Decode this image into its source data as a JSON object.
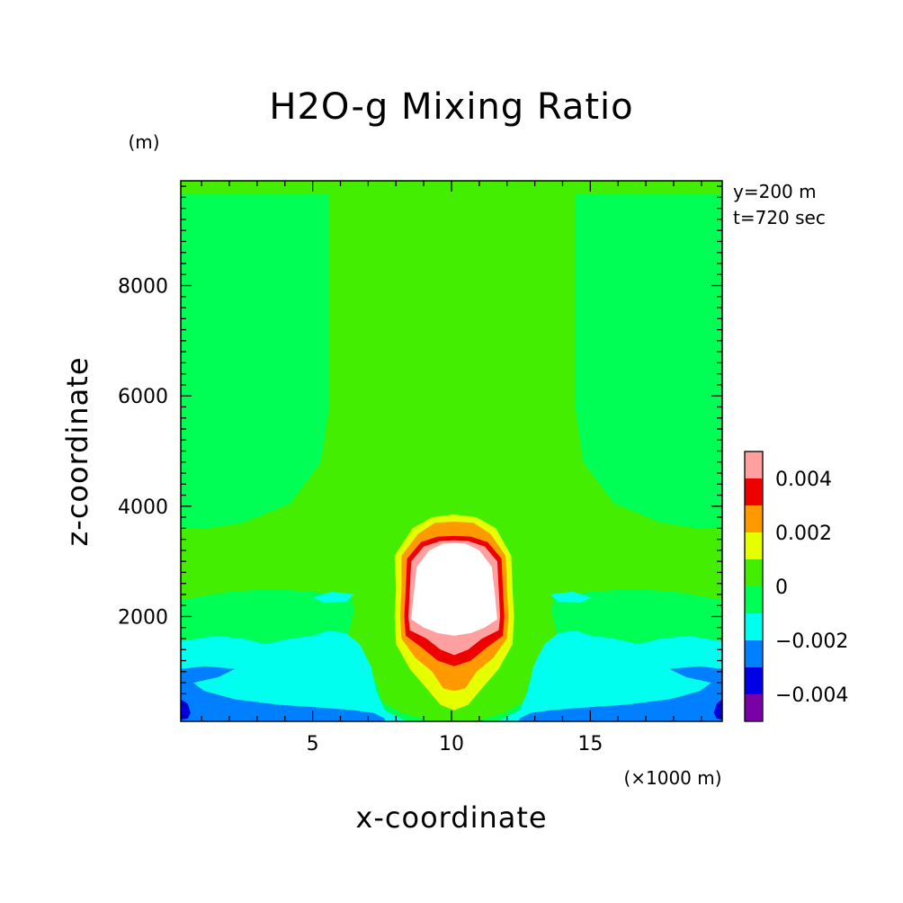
{
  "chart_data": {
    "type": "heatmap",
    "subtype": "filled-contour",
    "title": "H2O-g Mixing Ratio",
    "xlabel": "x-coordinate",
    "ylabel": "z-coordinate",
    "x_unit": "(×1000 m)",
    "y_unit": "(m)",
    "annotations": [
      "y=200 m",
      "t=720 sec"
    ],
    "xlim": [
      0.25,
      19.75
    ],
    "ylim": [
      100,
      9900
    ],
    "xticks": [
      5,
      10,
      15
    ],
    "xtick_labels": [
      "5",
      "10",
      "15"
    ],
    "yticks": [
      2000,
      4000,
      6000,
      8000
    ],
    "ytick_labels": [
      "2000",
      "4000",
      "6000",
      "8000"
    ],
    "colorbar": {
      "placement": "right",
      "levels": [
        -0.005,
        -0.004,
        -0.003,
        -0.002,
        -0.001,
        0,
        0.001,
        0.002,
        0.003,
        0.004,
        0.005
      ],
      "colors": [
        "#7a00a8",
        "#0000e6",
        "#0080ff",
        "#00ffee",
        "#00ff55",
        "#44ee00",
        "#e6ff00",
        "#ff9900",
        "#ee0000",
        "#ffa0a0"
      ],
      "tick_values": [
        -0.004,
        -0.002,
        0,
        0.002,
        0.004
      ],
      "tick_labels": [
        "−0.004",
        "−0.002",
        "0",
        "0.002",
        "0.004"
      ]
    },
    "regions": [
      {
        "level": "0 to 0.001",
        "color": "#44ee00",
        "points": [
          [
            0.25,
            9900
          ],
          [
            19.75,
            9900
          ],
          [
            19.75,
            100
          ],
          [
            0.25,
            100
          ]
        ]
      },
      {
        "level": "-0.001 to 0",
        "color": "#00ff55",
        "points": [
          [
            0.25,
            3600
          ],
          [
            0.25,
            9650
          ],
          [
            5.6,
            9650
          ],
          [
            5.6,
            5800
          ],
          [
            5.3,
            4800
          ],
          [
            4.2,
            4050
          ],
          [
            2.5,
            3700
          ],
          [
            1.2,
            3600
          ]
        ]
      },
      {
        "level": "-0.001 to 0",
        "color": "#00ff55",
        "points": [
          [
            19.75,
            3600
          ],
          [
            19.75,
            9650
          ],
          [
            14.45,
            9650
          ],
          [
            14.45,
            5800
          ],
          [
            14.75,
            4800
          ],
          [
            15.85,
            4050
          ],
          [
            17.55,
            3700
          ],
          [
            18.85,
            3600
          ]
        ]
      },
      {
        "level": "-0.001 to 0",
        "color": "#00ff55",
        "points": [
          [
            0.25,
            2300
          ],
          [
            2.0,
            2450
          ],
          [
            3.5,
            2500
          ],
          [
            5.0,
            2450
          ],
          [
            6.3,
            2350
          ],
          [
            7.0,
            2200
          ],
          [
            7.3,
            1900
          ],
          [
            7.6,
            1200
          ],
          [
            8.3,
            700
          ],
          [
            9.1,
            450
          ],
          [
            9.3,
            100
          ],
          [
            0.25,
            100
          ]
        ]
      },
      {
        "level": "-0.001 to 0",
        "color": "#00ff55",
        "points": [
          [
            19.75,
            2300
          ],
          [
            18.05,
            2450
          ],
          [
            16.55,
            2500
          ],
          [
            15.05,
            2450
          ],
          [
            13.75,
            2350
          ],
          [
            13.05,
            2200
          ],
          [
            12.75,
            1900
          ],
          [
            12.45,
            1200
          ],
          [
            11.75,
            700
          ],
          [
            10.95,
            450
          ],
          [
            10.75,
            100
          ],
          [
            19.75,
            100
          ]
        ]
      },
      {
        "level": "0 to 0.001",
        "color": "#44ee00",
        "points": [
          [
            6.2,
            3050
          ],
          [
            6.3,
            2600
          ],
          [
            6.5,
            2100
          ],
          [
            6.3,
            1700
          ],
          [
            5.8,
            1450
          ],
          [
            5.1,
            1400
          ],
          [
            5.8,
            1250
          ],
          [
            6.7,
            1100
          ],
          [
            7.3,
            800
          ],
          [
            7.5,
            450
          ],
          [
            8.2,
            250
          ],
          [
            9.3,
            100
          ],
          [
            10.1,
            100
          ],
          [
            10.9,
            100
          ],
          [
            11.9,
            250
          ],
          [
            12.6,
            450
          ],
          [
            12.8,
            800
          ],
          [
            13.4,
            1100
          ],
          [
            14.3,
            1250
          ],
          [
            15.0,
            1400
          ],
          [
            14.3,
            1450
          ],
          [
            13.8,
            1700
          ],
          [
            13.6,
            2100
          ],
          [
            13.8,
            2600
          ],
          [
            13.9,
            3050
          ],
          [
            13.1,
            3900
          ],
          [
            12.2,
            4450
          ],
          [
            11.0,
            4700
          ],
          [
            10.1,
            4750
          ],
          [
            9.1,
            4700
          ],
          [
            7.9,
            4450
          ],
          [
            7.0,
            3900
          ]
        ]
      },
      {
        "level": "-0.002 to -0.001",
        "color": "#00ffee",
        "points": [
          [
            0.25,
            1550
          ],
          [
            1.5,
            1650
          ],
          [
            2.5,
            1600
          ],
          [
            3.3,
            1500
          ],
          [
            4.2,
            1600
          ],
          [
            5.0,
            1650
          ],
          [
            5.6,
            1750
          ],
          [
            6.2,
            1700
          ],
          [
            6.7,
            1500
          ],
          [
            7.1,
            1100
          ],
          [
            7.3,
            650
          ],
          [
            7.6,
            300
          ],
          [
            8.3,
            120
          ],
          [
            8.7,
            100
          ],
          [
            0.25,
            100
          ]
        ]
      },
      {
        "level": "-0.002 to -0.001",
        "color": "#00ffee",
        "points": [
          [
            19.75,
            1550
          ],
          [
            18.55,
            1650
          ],
          [
            17.55,
            1600
          ],
          [
            16.75,
            1500
          ],
          [
            15.85,
            1600
          ],
          [
            15.05,
            1650
          ],
          [
            14.45,
            1750
          ],
          [
            13.85,
            1700
          ],
          [
            13.35,
            1500
          ],
          [
            12.95,
            1100
          ],
          [
            12.75,
            650
          ],
          [
            12.45,
            300
          ],
          [
            11.75,
            120
          ],
          [
            11.35,
            100
          ],
          [
            19.75,
            100
          ]
        ]
      },
      {
        "level": "-0.002 to -0.001",
        "color": "#00ffee",
        "points": [
          [
            5.0,
            2350
          ],
          [
            5.7,
            2450
          ],
          [
            6.5,
            2400
          ],
          [
            6.2,
            2270
          ],
          [
            5.4,
            2250
          ]
        ]
      },
      {
        "level": "-0.002 to -0.001",
        "color": "#00ffee",
        "points": [
          [
            15.05,
            2350
          ],
          [
            14.35,
            2450
          ],
          [
            13.55,
            2400
          ],
          [
            13.85,
            2270
          ],
          [
            14.65,
            2250
          ]
        ]
      },
      {
        "level": "-0.003 to -0.002",
        "color": "#0080ff",
        "points": [
          [
            0.25,
            1050
          ],
          [
            1.1,
            1100
          ],
          [
            2.2,
            1050
          ],
          [
            1.6,
            900
          ],
          [
            0.7,
            800
          ],
          [
            1.1,
            650
          ],
          [
            2.2,
            500
          ],
          [
            3.8,
            400
          ],
          [
            5.3,
            350
          ],
          [
            6.5,
            300
          ],
          [
            7.2,
            250
          ],
          [
            7.6,
            150
          ],
          [
            7.6,
            100
          ],
          [
            0.25,
            100
          ]
        ]
      },
      {
        "level": "-0.003 to -0.002",
        "color": "#0080ff",
        "points": [
          [
            19.75,
            1050
          ],
          [
            18.95,
            1100
          ],
          [
            17.85,
            1050
          ],
          [
            18.45,
            900
          ],
          [
            19.35,
            800
          ],
          [
            18.95,
            650
          ],
          [
            17.85,
            500
          ],
          [
            16.25,
            400
          ],
          [
            14.75,
            350
          ],
          [
            13.55,
            300
          ],
          [
            12.85,
            250
          ],
          [
            12.45,
            150
          ],
          [
            12.45,
            100
          ],
          [
            19.75,
            100
          ]
        ]
      },
      {
        "level": "-0.004 to -0.003",
        "color": "#0000e6",
        "points": [
          [
            0.25,
            500
          ],
          [
            0.5,
            420
          ],
          [
            0.6,
            250
          ],
          [
            0.5,
            150
          ],
          [
            0.25,
            130
          ]
        ]
      },
      {
        "level": "-0.004 to -0.003",
        "color": "#0000e6",
        "points": [
          [
            19.75,
            500
          ],
          [
            19.55,
            420
          ],
          [
            19.45,
            250
          ],
          [
            19.55,
            150
          ],
          [
            19.75,
            130
          ]
        ]
      },
      {
        "level": "0.001 to 0.002",
        "color": "#e6ff00",
        "points": [
          [
            7.95,
            3100
          ],
          [
            8.0,
            2500
          ],
          [
            7.95,
            2000
          ],
          [
            8.0,
            1500
          ],
          [
            8.5,
            1050
          ],
          [
            9.1,
            700
          ],
          [
            9.6,
            400
          ],
          [
            10.1,
            300
          ],
          [
            10.6,
            400
          ],
          [
            11.1,
            700
          ],
          [
            11.7,
            1050
          ],
          [
            12.2,
            1500
          ],
          [
            12.25,
            2000
          ],
          [
            12.2,
            2500
          ],
          [
            12.15,
            3100
          ],
          [
            11.6,
            3600
          ],
          [
            10.9,
            3800
          ],
          [
            10.1,
            3850
          ],
          [
            9.3,
            3800
          ],
          [
            8.6,
            3600
          ]
        ]
      },
      {
        "level": "0.002 to 0.003",
        "color": "#ff9900",
        "points": [
          [
            8.2,
            3100
          ],
          [
            8.2,
            2500
          ],
          [
            8.15,
            2000
          ],
          [
            8.2,
            1600
          ],
          [
            8.7,
            1250
          ],
          [
            9.3,
            1000
          ],
          [
            9.7,
            700
          ],
          [
            10.1,
            650
          ],
          [
            10.5,
            700
          ],
          [
            10.9,
            1000
          ],
          [
            11.5,
            1250
          ],
          [
            12.0,
            1600
          ],
          [
            12.05,
            2000
          ],
          [
            12.0,
            2500
          ],
          [
            11.95,
            3100
          ],
          [
            11.4,
            3500
          ],
          [
            10.8,
            3700
          ],
          [
            10.1,
            3720
          ],
          [
            9.4,
            3700
          ],
          [
            8.8,
            3500
          ]
        ]
      },
      {
        "level": "0.003 to 0.004",
        "color": "#ee0000",
        "points": [
          [
            8.4,
            3050
          ],
          [
            8.35,
            2500
          ],
          [
            8.3,
            2000
          ],
          [
            8.35,
            1650
          ],
          [
            8.9,
            1450
          ],
          [
            9.5,
            1200
          ],
          [
            10.1,
            1100
          ],
          [
            10.7,
            1200
          ],
          [
            11.3,
            1450
          ],
          [
            11.85,
            1650
          ],
          [
            11.9,
            2000
          ],
          [
            11.85,
            2500
          ],
          [
            11.8,
            3050
          ],
          [
            11.3,
            3350
          ],
          [
            10.7,
            3450
          ],
          [
            10.1,
            3460
          ],
          [
            9.5,
            3450
          ],
          [
            8.9,
            3350
          ]
        ]
      },
      {
        "level": "0.004 to 0.005",
        "color": "#ffa0a0",
        "points": [
          [
            8.55,
            3000
          ],
          [
            8.5,
            2500
          ],
          [
            8.45,
            2000
          ],
          [
            8.5,
            1750
          ],
          [
            9.1,
            1600
          ],
          [
            9.6,
            1400
          ],
          [
            10.1,
            1300
          ],
          [
            10.6,
            1400
          ],
          [
            11.1,
            1600
          ],
          [
            11.7,
            1750
          ],
          [
            11.75,
            2000
          ],
          [
            11.7,
            2500
          ],
          [
            11.65,
            3000
          ],
          [
            11.2,
            3270
          ],
          [
            10.6,
            3370
          ],
          [
            10.1,
            3380
          ],
          [
            9.6,
            3370
          ],
          [
            9.0,
            3270
          ]
        ]
      },
      {
        "level": "above 0.005",
        "color": "#ffffff",
        "points": [
          [
            8.75,
            2900
          ],
          [
            8.65,
            2450
          ],
          [
            8.55,
            1950
          ],
          [
            9.0,
            1800
          ],
          [
            9.5,
            1700
          ],
          [
            10.1,
            1650
          ],
          [
            10.7,
            1700
          ],
          [
            11.2,
            1800
          ],
          [
            11.65,
            1950
          ],
          [
            11.55,
            2450
          ],
          [
            11.45,
            2900
          ],
          [
            11.0,
            3200
          ],
          [
            10.5,
            3320
          ],
          [
            10.1,
            3330
          ],
          [
            9.7,
            3320
          ],
          [
            9.2,
            3200
          ]
        ]
      }
    ]
  }
}
